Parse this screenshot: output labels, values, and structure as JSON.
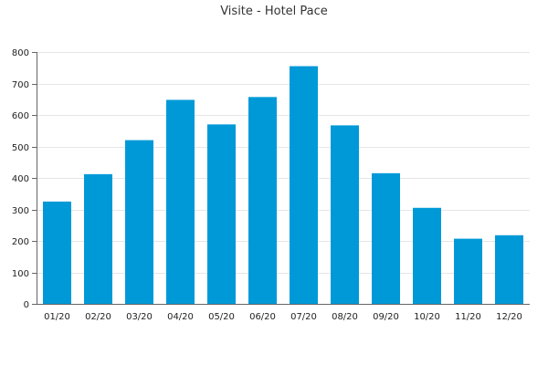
{
  "chart_data": {
    "type": "bar",
    "title": "Visite - Hotel Pace",
    "categories": [
      "01/20",
      "02/20",
      "03/20",
      "04/20",
      "05/20",
      "06/20",
      "07/20",
      "08/20",
      "09/20",
      "10/20",
      "11/20",
      "12/20"
    ],
    "values": [
      325,
      412,
      520,
      648,
      570,
      657,
      755,
      567,
      415,
      305,
      207,
      218
    ],
    "ylim": [
      0,
      800
    ],
    "yticks": [
      0,
      100,
      200,
      300,
      400,
      500,
      600,
      700,
      800
    ],
    "grid": true,
    "bar_color": "#0099d8",
    "xlabel": "",
    "ylabel": ""
  }
}
